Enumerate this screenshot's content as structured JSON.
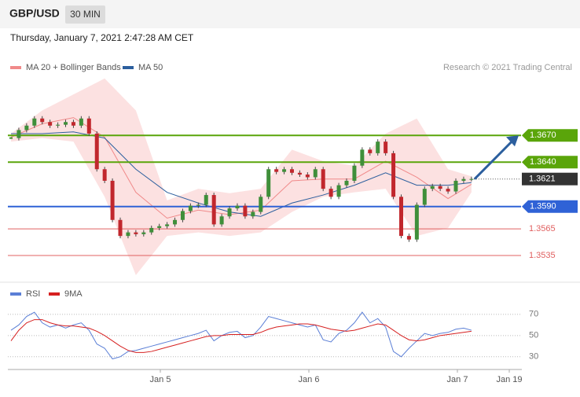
{
  "header": {
    "symbol": "GBP/USD",
    "interval": "30 MIN",
    "timestamp": "Thursday, January 7, 2021 2:47:28 AM CET"
  },
  "chart_data": [
    {
      "type": "candlestick",
      "legend": [
        {
          "name": "MA 20 + Bollinger Bands",
          "color": "#f08a8a"
        },
        {
          "name": "MA 50",
          "color": "#2c5f9e"
        }
      ],
      "credit": "Research © 2021 Trading Central",
      "close": [
        1.3667,
        1.3676,
        1.3681,
        1.3689,
        1.3685,
        1.3681,
        1.3682,
        1.3685,
        1.3681,
        1.3689,
        1.3672,
        1.3632,
        1.3619,
        1.3575,
        1.3557,
        1.3561,
        1.3559,
        1.3561,
        1.3566,
        1.3568,
        1.357,
        1.3575,
        1.3585,
        1.3591,
        1.3592,
        1.3603,
        1.357,
        1.3579,
        1.3588,
        1.3591,
        1.3579,
        1.3584,
        1.3601,
        1.3632,
        1.3629,
        1.3632,
        1.3628,
        1.3626,
        1.3623,
        1.3632,
        1.361,
        1.3601,
        1.3614,
        1.3619,
        1.3636,
        1.3654,
        1.365,
        1.3663,
        1.365,
        1.3601,
        1.3557,
        1.3553,
        1.3592,
        1.361,
        1.3613,
        1.361,
        1.3607,
        1.3619,
        1.3621,
        1.3621
      ],
      "up_color": "#3f8f3a",
      "down_color": "#c1272d",
      "bands": {
        "index": [
          0,
          4,
          8,
          12,
          16,
          20,
          24,
          28,
          32,
          36,
          40,
          44,
          48,
          52,
          56,
          59
        ],
        "upper": [
          1.3672,
          1.3698,
          1.3716,
          1.3734,
          1.3698,
          1.3597,
          1.361,
          1.3605,
          1.361,
          1.3654,
          1.3641,
          1.3636,
          1.3672,
          1.3689,
          1.3632,
          1.3624
        ],
        "lower": [
          1.3663,
          1.3667,
          1.3663,
          1.3601,
          1.3513,
          1.3557,
          1.3561,
          1.3557,
          1.3561,
          1.3584,
          1.3601,
          1.3606,
          1.361,
          1.3557,
          1.3566,
          1.3606
        ],
        "ma20": [
          1.3668,
          1.3683,
          1.369,
          1.3668,
          1.3606,
          1.3577,
          1.3586,
          1.3581,
          1.3586,
          1.3619,
          1.3621,
          1.3621,
          1.3641,
          1.3623,
          1.3599,
          1.3615
        ],
        "ma50": [
          1.3672,
          1.3672,
          1.3674,
          1.3667,
          1.3632,
          1.3606,
          1.3594,
          1.3584,
          1.3579,
          1.3594,
          1.3603,
          1.3614,
          1.3628,
          1.3614,
          1.3614,
          1.3617
        ]
      },
      "ylim": [
        1.3505,
        1.374
      ],
      "levels": [
        {
          "price": {
            "value": 1.367,
            "label": "1.3670"
          },
          "color": "#5aa50a",
          "kind": "box"
        },
        {
          "price": {
            "value": 1.364,
            "label": "1.3640"
          },
          "color": "#5aa50a",
          "kind": "box"
        },
        {
          "price": 1.3621,
          "color": "#333333",
          "kind": "current"
        },
        {
          "price": {
            "value": 1.359,
            "label": "1.3590"
          },
          "color": "#2f62d6",
          "kind": "box"
        },
        {
          "price": 1.3565,
          "color": "#e06060",
          "kind": "text"
        },
        {
          "price": 1.3535,
          "color": "#e06060",
          "kind": "text"
        }
      ]
    },
    {
      "type": "line",
      "series": [
        {
          "name": "RSI",
          "color": "#5b7fd6",
          "values": [
            55,
            60,
            68,
            72,
            62,
            58,
            60,
            57,
            60,
            62,
            55,
            42,
            38,
            28,
            30,
            35,
            36,
            38,
            40,
            42,
            44,
            46,
            48,
            50,
            52,
            55,
            45,
            50,
            53,
            54,
            48,
            50,
            58,
            68,
            66,
            64,
            62,
            60,
            58,
            60,
            46,
            44,
            52,
            55,
            62,
            72,
            62,
            66,
            58,
            35,
            30,
            38,
            45,
            52,
            50,
            52,
            53,
            56,
            57,
            55
          ]
        },
        {
          "name": "9MA",
          "color": "#d62020",
          "values": [
            45,
            55,
            62,
            65,
            65,
            62,
            60,
            59,
            59,
            58,
            57,
            54,
            50,
            45,
            40,
            36,
            34,
            34,
            35,
            37,
            39,
            41,
            43,
            45,
            47,
            49,
            50,
            50,
            51,
            51,
            51,
            51,
            53,
            56,
            58,
            59,
            60,
            61,
            61,
            60,
            58,
            56,
            55,
            54,
            55,
            57,
            59,
            61,
            60,
            55,
            50,
            46,
            45,
            46,
            48,
            50,
            51,
            52,
            53,
            54
          ]
        }
      ],
      "ylim": [
        18,
        81
      ],
      "yticks": [
        70,
        50,
        30
      ],
      "x_labels": [
        "Jan 5",
        "Jan 6",
        "Jan 7",
        "Jan 19"
      ]
    }
  ]
}
